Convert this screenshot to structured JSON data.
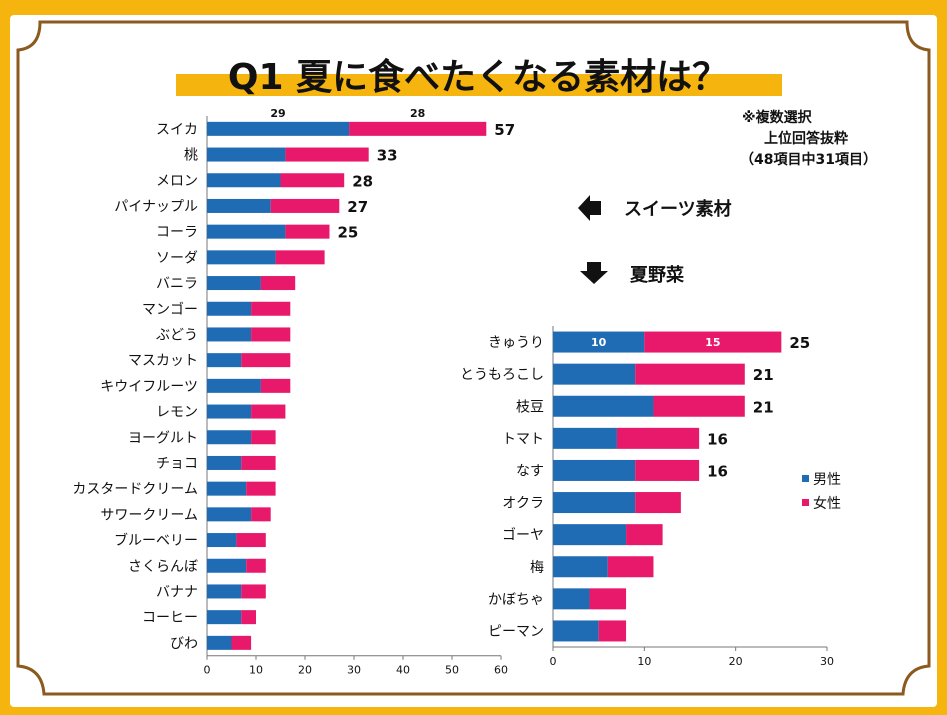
{
  "title": "Q1  夏に食べたくなる素材は？",
  "note": [
    "※複数選択",
    "上位回答抜粋",
    "（48項目中31項目）"
  ],
  "groups": {
    "sweets": "スイーツ素材",
    "vegetables": "夏野菜"
  },
  "colors": {
    "male": "#1f6cb5",
    "female": "#e8186b",
    "background": "#f6b40e",
    "panel": "#ffffff",
    "border": "#8b5a1e",
    "highlight": "#f6b40e"
  },
  "chart_data": [
    {
      "type": "bar",
      "orientation": "horizontal",
      "stacked": true,
      "group": "スイーツ素材",
      "categories": [
        "スイカ",
        "桃",
        "メロン",
        "パイナップル",
        "コーラ",
        "ソーダ",
        "バニラ",
        "マンゴー",
        "ぶどう",
        "マスカット",
        "キウイフルーツ",
        "レモン",
        "ヨーグルト",
        "チョコ",
        "カスタードクリーム",
        "サワークリーム",
        "ブルーベリー",
        "さくらんぼ",
        "バナナ",
        "コーヒー",
        "びわ"
      ],
      "series": [
        {
          "name": "男性",
          "values": [
            29,
            16,
            15,
            13,
            16,
            14,
            11,
            9,
            9,
            7,
            11,
            9,
            9,
            7,
            8,
            9,
            6,
            8,
            7,
            7,
            5
          ]
        },
        {
          "name": "女性",
          "values": [
            28,
            17,
            13,
            14,
            9,
            10,
            7,
            8,
            8,
            10,
            6,
            7,
            5,
            7,
            6,
            4,
            6,
            4,
            5,
            3,
            4
          ]
        }
      ],
      "totals": [
        "57",
        "33",
        "28",
        "27",
        "25",
        "",
        "",
        "",
        "",
        "",
        "",
        "",
        "",
        "",
        "",
        "",
        "",
        "",
        "",
        "",
        ""
      ],
      "segment_labels": [
        [
          "29",
          "28"
        ]
      ],
      "ticks": [
        "0",
        "10",
        "20",
        "30",
        "40",
        "50",
        "60"
      ],
      "xlim": [
        0,
        60
      ]
    },
    {
      "type": "bar",
      "orientation": "horizontal",
      "stacked": true,
      "group": "夏野菜",
      "categories": [
        "きゅうり",
        "とうもろこし",
        "枝豆",
        "トマト",
        "なす",
        "オクラ",
        "ゴーヤ",
        "梅",
        "かぼちゃ",
        "ピーマン"
      ],
      "series": [
        {
          "name": "男性",
          "values": [
            10,
            9,
            11,
            7,
            9,
            9,
            8,
            6,
            4,
            5
          ]
        },
        {
          "name": "女性",
          "values": [
            15,
            12,
            10,
            9,
            7,
            5,
            4,
            5,
            4,
            3
          ]
        }
      ],
      "totals": [
        "25",
        "21",
        "21",
        "16",
        "16",
        "",
        "",
        "",
        "",
        ""
      ],
      "segment_labels": [
        [
          "10",
          "15"
        ]
      ],
      "ticks": [
        "0",
        "10",
        "20",
        "30"
      ],
      "xlim": [
        0,
        30
      ],
      "legend": [
        "男性",
        "女性"
      ]
    }
  ]
}
